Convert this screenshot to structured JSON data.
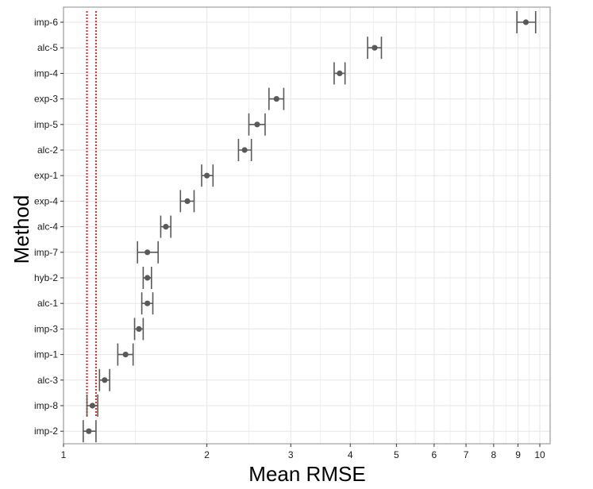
{
  "chart_data": {
    "type": "scatter",
    "subtype": "point-with-error-bars",
    "title": "",
    "xlabel": "Mean RMSE",
    "ylabel": "Method",
    "x_scale": "log",
    "xlim": [
      1,
      10.5
    ],
    "x_ticks": [
      1,
      2,
      3,
      4,
      5,
      6,
      7,
      8,
      9,
      10
    ],
    "x_tick_labels": [
      "1",
      "2",
      "3",
      "4",
      "5",
      "6",
      "7",
      "8",
      "9",
      "10"
    ],
    "grid": true,
    "reference_lines": [
      1.12,
      1.17
    ],
    "points": [
      {
        "method": "imp-6",
        "mean": 9.35,
        "low": 8.95,
        "high": 9.8
      },
      {
        "method": "alc-5",
        "mean": 4.5,
        "low": 4.35,
        "high": 4.65
      },
      {
        "method": "imp-4",
        "mean": 3.8,
        "low": 3.7,
        "high": 3.9
      },
      {
        "method": "exp-3",
        "mean": 2.8,
        "low": 2.7,
        "high": 2.9
      },
      {
        "method": "imp-5",
        "mean": 2.55,
        "low": 2.45,
        "high": 2.65
      },
      {
        "method": "alc-2",
        "mean": 2.4,
        "low": 2.33,
        "high": 2.48
      },
      {
        "method": "exp-1",
        "mean": 2.0,
        "low": 1.95,
        "high": 2.06
      },
      {
        "method": "exp-4",
        "mean": 1.82,
        "low": 1.76,
        "high": 1.88
      },
      {
        "method": "alc-4",
        "mean": 1.64,
        "low": 1.6,
        "high": 1.68
      },
      {
        "method": "imp-7",
        "mean": 1.5,
        "low": 1.43,
        "high": 1.58
      },
      {
        "method": "hyb-2",
        "mean": 1.5,
        "low": 1.47,
        "high": 1.53
      },
      {
        "method": "alc-1",
        "mean": 1.5,
        "low": 1.46,
        "high": 1.54
      },
      {
        "method": "imp-3",
        "mean": 1.44,
        "low": 1.41,
        "high": 1.47
      },
      {
        "method": "imp-1",
        "mean": 1.35,
        "low": 1.3,
        "high": 1.4
      },
      {
        "method": "alc-3",
        "mean": 1.22,
        "low": 1.19,
        "high": 1.25
      },
      {
        "method": "imp-8",
        "mean": 1.15,
        "low": 1.12,
        "high": 1.18
      },
      {
        "method": "imp-2",
        "mean": 1.13,
        "low": 1.1,
        "high": 1.17
      }
    ],
    "colors": {
      "point": "#595959",
      "error_bar": "#595959",
      "reference_line": "#d62b1f",
      "grid": "#e6e6e6",
      "panel_border": "#8a8a8a"
    }
  }
}
